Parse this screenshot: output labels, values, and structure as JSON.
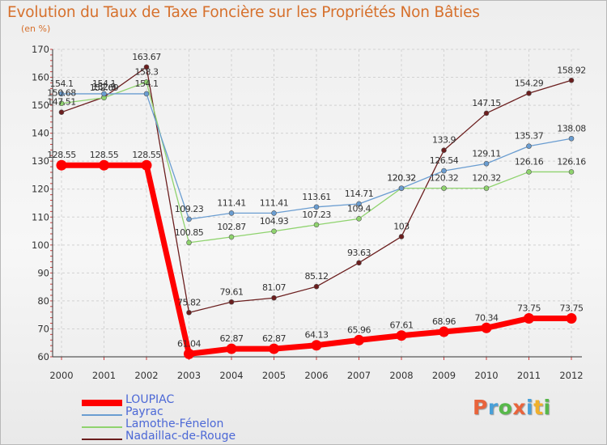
{
  "title": "Evolution du Taux de Taxe Foncière sur les Propriétés Non Bâties",
  "unit": "(en %)",
  "logo": {
    "text": "Proxiti",
    "colors": [
      "#e8643c",
      "#49a0d8",
      "#57b84a",
      "#e8643c",
      "#49a0d8",
      "#f0b02c",
      "#57b84a"
    ]
  },
  "chart_data": {
    "type": "line",
    "x": [
      "2000",
      "2001",
      "2002",
      "2003",
      "2004",
      "2005",
      "2006",
      "2007",
      "2008",
      "2009",
      "2010",
      "2011",
      "2012"
    ],
    "ylim": [
      60,
      170
    ],
    "yticks": [
      "60",
      "70",
      "80",
      "90",
      "100",
      "110",
      "120",
      "130",
      "140",
      "150",
      "160",
      "170"
    ],
    "grid": true,
    "legend_position": "bottom-left",
    "series": [
      {
        "name": "LOUPIAC",
        "color": "#ff0000",
        "width": 7,
        "values": [
          128.55,
          128.55,
          128.55,
          61.04,
          62.87,
          62.87,
          64.13,
          65.96,
          67.61,
          68.96,
          70.34,
          73.75,
          73.75
        ],
        "labels": [
          "128.55",
          "128.55",
          "128.55",
          "61.04",
          "62.87",
          "62.87",
          "64.13",
          "65.96",
          "67.61",
          "68.96",
          "70.34",
          "73.75",
          "73.75"
        ]
      },
      {
        "name": "Payrac",
        "color": "#6a9dd1",
        "width": 1.3,
        "values": [
          154.1,
          154.1,
          154.1,
          109.23,
          111.41,
          111.41,
          113.61,
          114.71,
          120.32,
          126.54,
          129.11,
          135.37,
          138.08
        ],
        "labels": [
          "154.1",
          "154.1",
          "154.1",
          "109.23",
          "111.41",
          "111.41",
          "113.61",
          "114.71",
          "120.32",
          "126.54",
          "129.11",
          "135.37",
          "138.08"
        ]
      },
      {
        "name": "Lamothe-Fénelon",
        "color": "#8fd36e",
        "width": 1.3,
        "values": [
          150.68,
          152.69,
          158.3,
          100.85,
          102.87,
          104.93,
          107.23,
          109.4,
          120.32,
          120.32,
          120.32,
          126.16,
          126.16
        ],
        "labels": [
          "150.68",
          "152.69",
          "158.3",
          "100.85",
          "102.87",
          "104.93",
          "107.23",
          "109.4",
          "120.32",
          "120.32",
          "120.32",
          "126.16",
          "126.16"
        ]
      },
      {
        "name": "Nadaillac-de-Rouge",
        "color": "#6b1e1e",
        "width": 1.3,
        "values": [
          147.51,
          152.9,
          163.67,
          75.82,
          79.61,
          81.07,
          85.12,
          93.63,
          103,
          133.9,
          147.15,
          154.29,
          158.92
        ],
        "labels": [
          "147.51",
          "152.9",
          "163.67",
          "75.82",
          "79.61",
          "81.07",
          "85.12",
          "93.63",
          "103",
          "133.9",
          "147.15",
          "154.29",
          "158.92"
        ]
      }
    ]
  }
}
